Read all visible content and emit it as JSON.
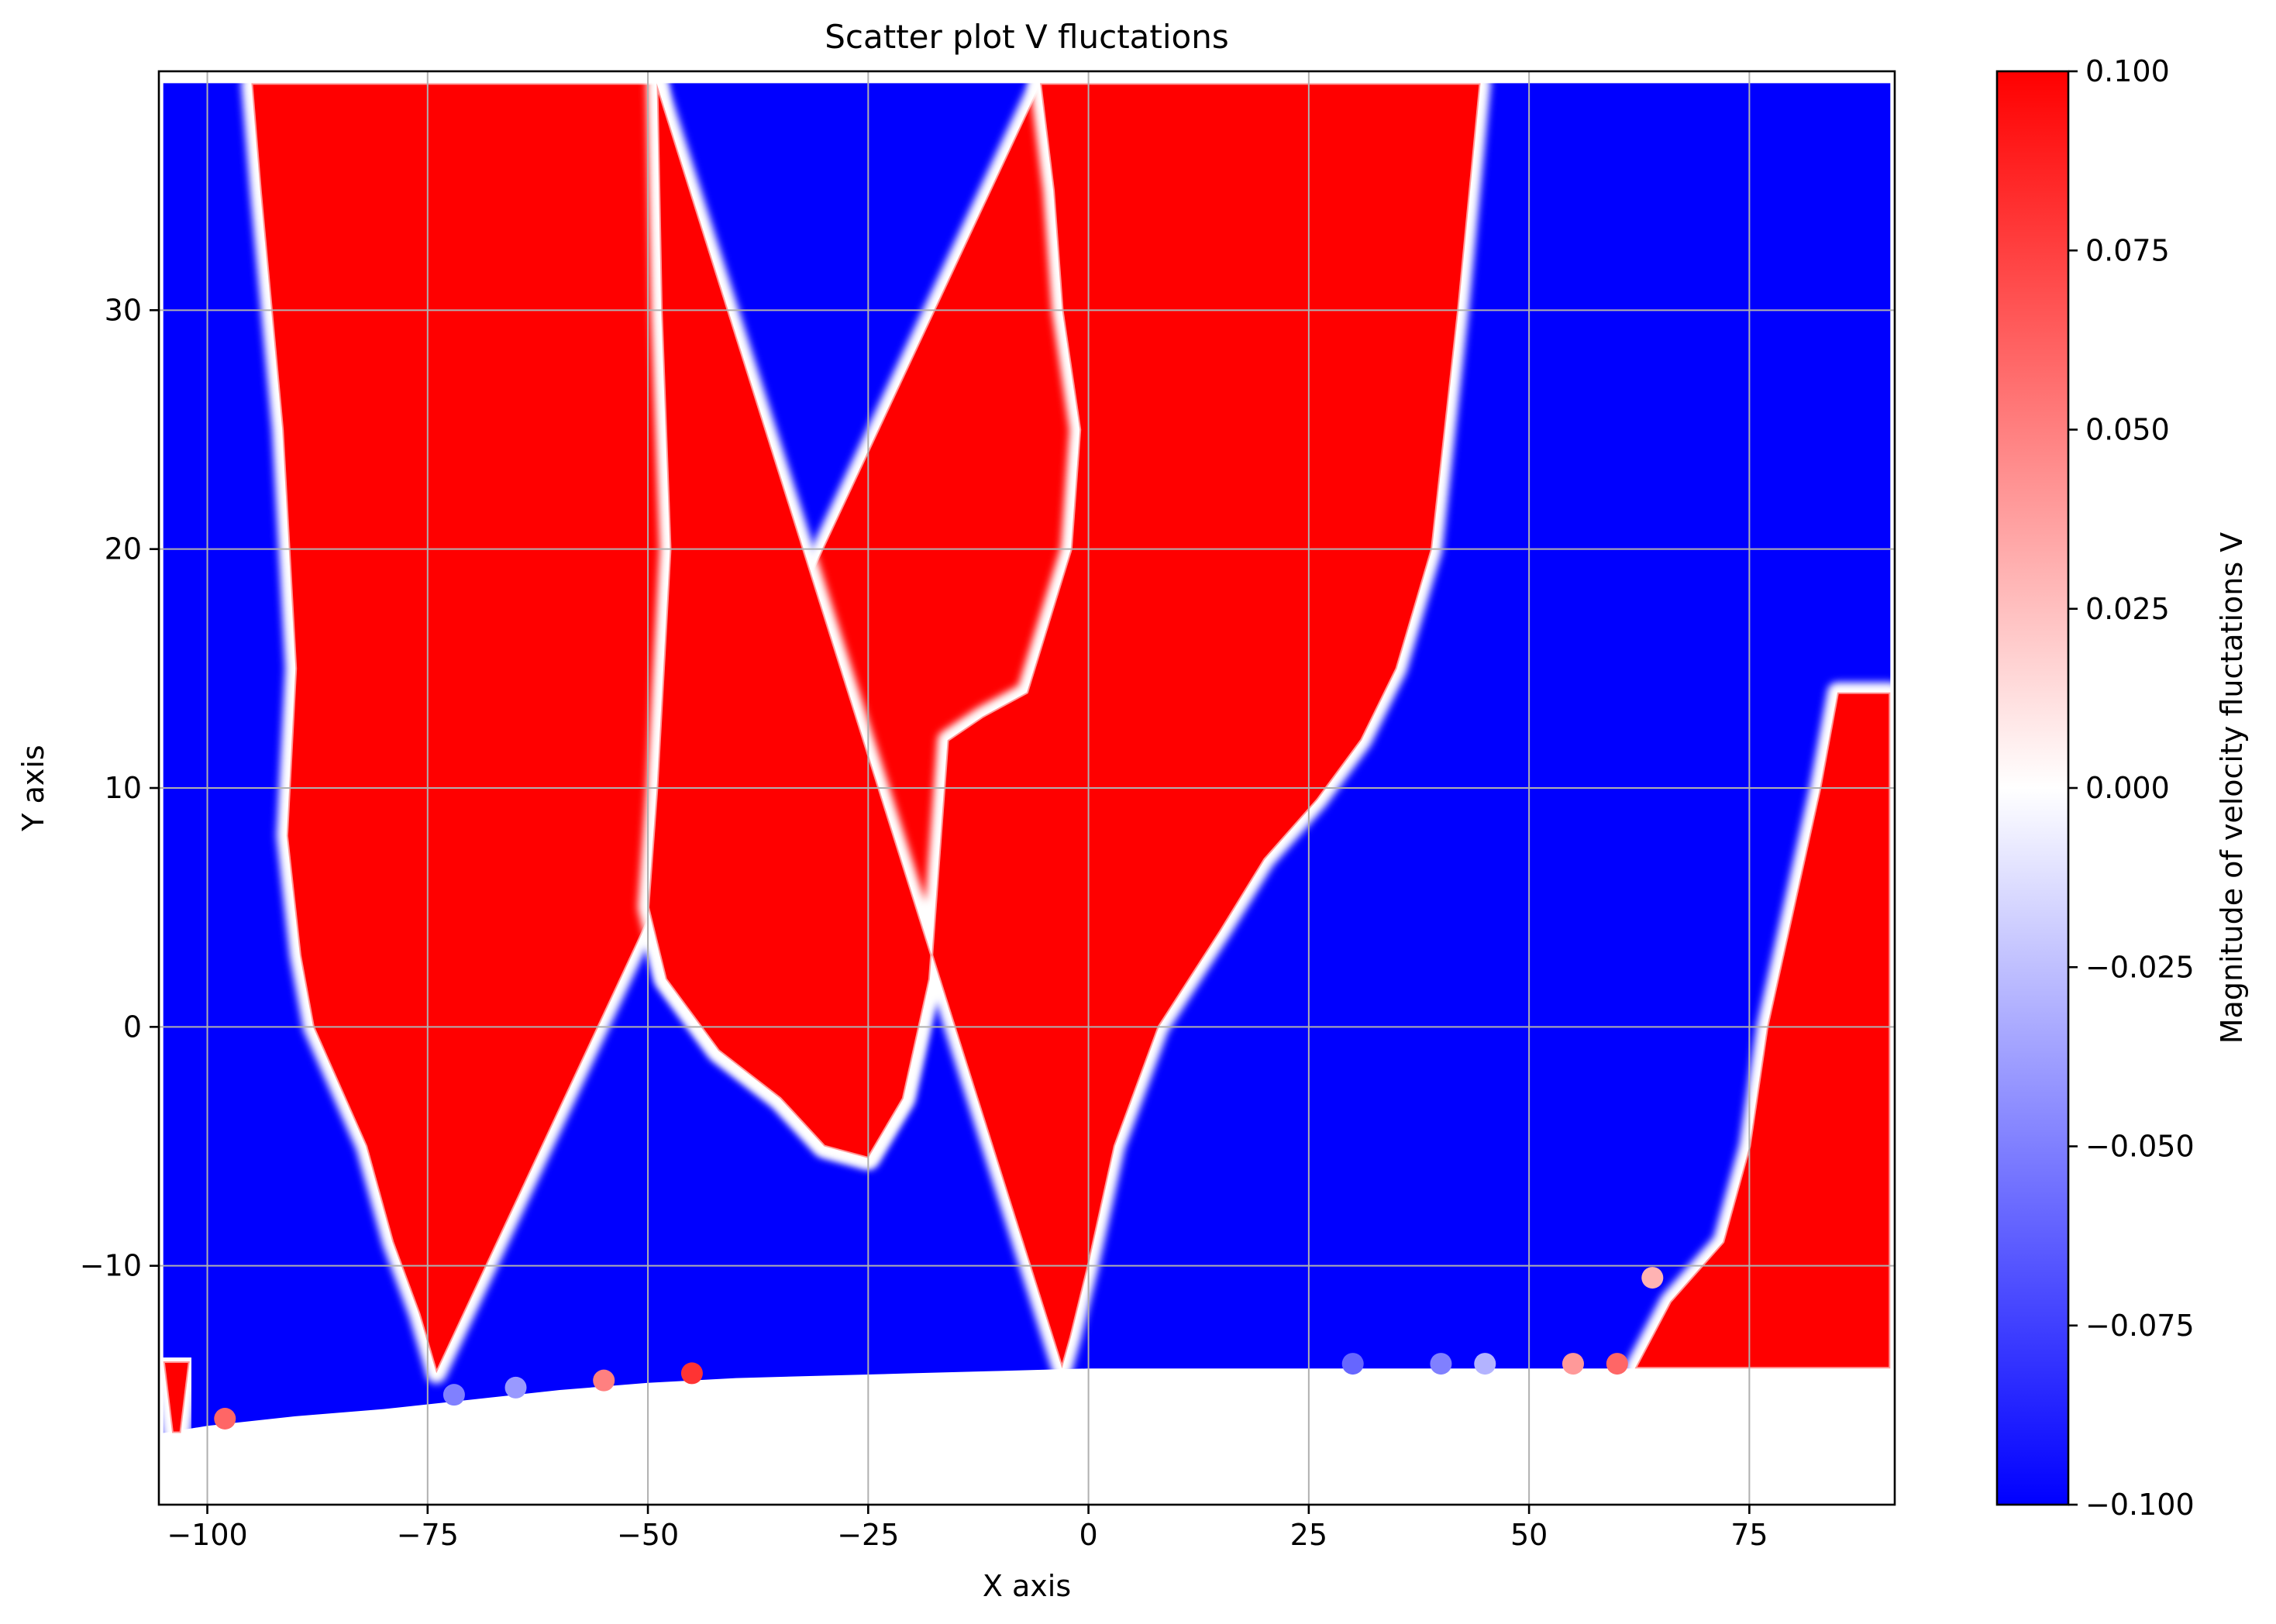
{
  "chart_data": {
    "type": "scatter",
    "title": "Scatter plot V fluctations",
    "xlabel": "X axis",
    "ylabel": "Y axis",
    "xlim": [
      -105.5,
      91.5
    ],
    "ylim": [
      -20,
      40
    ],
    "xticks": [
      {
        "value": -100,
        "label": "−100"
      },
      {
        "value": -75,
        "label": "−75"
      },
      {
        "value": -50,
        "label": "−50"
      },
      {
        "value": -25,
        "label": "−25"
      },
      {
        "value": 0,
        "label": "0"
      },
      {
        "value": 25,
        "label": "25"
      },
      {
        "value": 50,
        "label": "50"
      },
      {
        "value": 75,
        "label": "75"
      }
    ],
    "yticks": [
      {
        "value": -10,
        "label": "−10"
      },
      {
        "value": 0,
        "label": "0"
      },
      {
        "value": 10,
        "label": "10"
      },
      {
        "value": 20,
        "label": "20"
      },
      {
        "value": 30,
        "label": "30"
      }
    ],
    "grid": true,
    "colormap": "bwr",
    "colors": {
      "low": "#0000ff",
      "mid": "#ffffff",
      "high": "#ff0000"
    },
    "colorbar": {
      "label": "Magnitude of velocity fluctations V",
      "range": [
        -0.1,
        0.1
      ],
      "ticks": [
        {
          "value": 0.1,
          "label": "0.100"
        },
        {
          "value": 0.075,
          "label": "0.075"
        },
        {
          "value": 0.05,
          "label": "0.050"
        },
        {
          "value": 0.025,
          "label": "0.025"
        },
        {
          "value": 0.0,
          "label": "0.000"
        },
        {
          "value": -0.025,
          "label": "−0.025"
        },
        {
          "value": -0.05,
          "label": "−0.050"
        },
        {
          "value": -0.075,
          "label": "−0.075"
        },
        {
          "value": -0.1,
          "label": "−0.100"
        }
      ]
    },
    "domain": {
      "x_range": [
        -105,
        91
      ],
      "y_top": 39.5,
      "bottom_boundary": [
        [
          -105,
          -17
        ],
        [
          -100,
          -16.7
        ],
        [
          -90,
          -16.3
        ],
        [
          -80,
          -16
        ],
        [
          -70,
          -15.6
        ],
        [
          -60,
          -15.2
        ],
        [
          -50,
          -14.9
        ],
        [
          -40,
          -14.7
        ],
        [
          -30,
          -14.6
        ],
        [
          -20,
          -14.5
        ],
        [
          -10,
          -14.4
        ],
        [
          0,
          -14.3
        ],
        [
          91,
          -14.3
        ]
      ]
    },
    "regions": [
      {
        "value": 0.1,
        "left_boundary": [
          [
            -105,
            -14
          ],
          [
            -104,
            -17
          ]
        ],
        "right_boundary": [
          [
            -102,
            -14
          ],
          [
            -103,
            -17
          ]
        ]
      },
      {
        "value": 0.1,
        "left_boundary": [
          [
            -95,
            39.5
          ],
          [
            -94,
            35
          ],
          [
            -91.5,
            25
          ],
          [
            -90,
            15
          ],
          [
            -91,
            8
          ],
          [
            -89.5,
            3
          ],
          [
            -88,
            0
          ],
          [
            -82,
            -5
          ],
          [
            -79,
            -9
          ],
          [
            -76,
            -12
          ],
          [
            -74,
            -14.5
          ]
        ],
        "right_boundary": [
          [
            -49,
            39.5
          ],
          [
            -48.5,
            30
          ],
          [
            -47.5,
            20
          ],
          [
            -49,
            10
          ],
          [
            -50,
            5
          ],
          [
            -48,
            2
          ],
          [
            -42,
            -1
          ],
          [
            -35,
            -3
          ],
          [
            -30,
            -5
          ],
          [
            -25,
            -5.5
          ],
          [
            -21,
            -3
          ],
          [
            -18,
            2
          ],
          [
            -16,
            12
          ],
          [
            -12,
            13
          ],
          [
            -7,
            14
          ],
          [
            -2,
            20
          ],
          [
            -1,
            25
          ],
          [
            -3,
            30
          ],
          [
            -4,
            35
          ],
          [
            -5.5,
            39.5
          ]
        ]
      },
      {
        "value": 0.1,
        "left_boundary": [
          [
            -5.5,
            39.5
          ],
          [
            -4,
            35
          ],
          [
            -3,
            30
          ],
          [
            -1,
            25
          ],
          [
            -2,
            20
          ],
          [
            -7,
            14
          ],
          [
            -12,
            13
          ],
          [
            -16,
            12
          ],
          [
            -18,
            2
          ],
          [
            -21,
            -3
          ],
          [
            -25,
            -5.5
          ],
          [
            -30,
            -5
          ],
          [
            -35,
            -3
          ],
          [
            -42,
            -1
          ],
          [
            -48,
            2
          ],
          [
            -50,
            5
          ],
          [
            -49,
            10
          ],
          [
            -47.5,
            20
          ],
          [
            -48.5,
            30
          ],
          [
            -49,
            39.5
          ]
        ],
        "right_boundary": [
          [
            44.5,
            39.5
          ],
          [
            42,
            30
          ],
          [
            39,
            20
          ],
          [
            35,
            15
          ],
          [
            31,
            12
          ],
          [
            26,
            9.5
          ],
          [
            20,
            7
          ],
          [
            15,
            4
          ],
          [
            8,
            0
          ],
          [
            3,
            -5
          ],
          [
            0,
            -10
          ],
          [
            -2,
            -13
          ],
          [
            -3,
            -14.3
          ]
        ]
      },
      {
        "value": 0.1,
        "left_boundary": [
          [
            90,
            14
          ],
          [
            85,
            14
          ],
          [
            83,
            10
          ],
          [
            80,
            5
          ],
          [
            77,
            0
          ],
          [
            75,
            -5
          ],
          [
            72,
            -9
          ],
          [
            66,
            -11.5
          ],
          [
            62,
            -14.3
          ]
        ],
        "right_boundary": [
          [
            91,
            14
          ],
          [
            91,
            -14.3
          ]
        ]
      }
    ],
    "points": [
      {
        "x": -98,
        "y": -16.4,
        "v": 0.06
      },
      {
        "x": -72,
        "y": -15.4,
        "v": -0.05
      },
      {
        "x": -65,
        "y": -15.1,
        "v": -0.04
      },
      {
        "x": -55,
        "y": -14.8,
        "v": 0.05
      },
      {
        "x": -45,
        "y": -14.5,
        "v": 0.08
      },
      {
        "x": 30,
        "y": -14.1,
        "v": -0.06
      },
      {
        "x": 40,
        "y": -14.1,
        "v": -0.05
      },
      {
        "x": 45,
        "y": -14.1,
        "v": -0.03
      },
      {
        "x": 55,
        "y": -14.1,
        "v": 0.04
      },
      {
        "x": 60,
        "y": -14.1,
        "v": 0.06
      },
      {
        "x": 64,
        "y": -10.5,
        "v": 0.03
      }
    ]
  }
}
